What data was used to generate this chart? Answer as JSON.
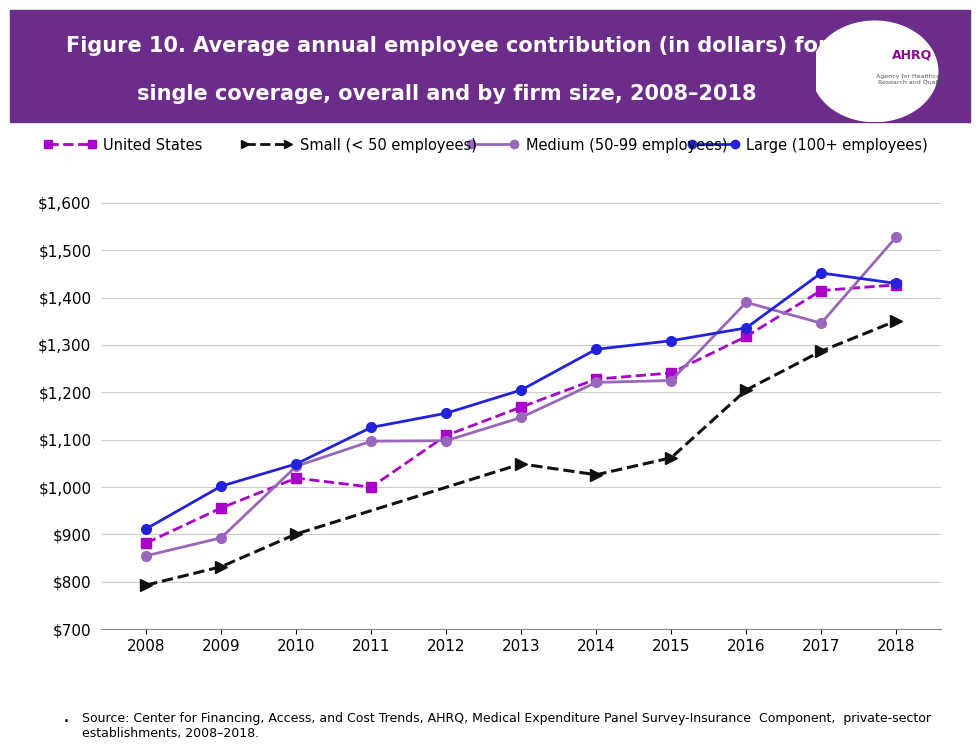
{
  "title_line1": "Figure 10. Average annual employee contribution (in dollars) for",
  "title_line2": "single coverage, overall and by firm size, 2008–2018",
  "header_bg_color": "#6B2C8A",
  "years": [
    2008,
    2009,
    2010,
    2011,
    2012,
    2013,
    2014,
    2015,
    2016,
    2017,
    2018
  ],
  "series": {
    "United States": {
      "values": [
        882,
        956,
        1019,
        1000,
        1109,
        1169,
        1228,
        1241,
        1318,
        1415,
        1427
      ],
      "color": "#AA00CC",
      "linestyle": "--",
      "marker": "s",
      "linewidth": 2.0,
      "markersize": 7
    },
    "Small (< 50 employees)": {
      "values": [
        793,
        832,
        901,
        null,
        null,
        1049,
        1026,
        1062,
        1205,
        1287,
        1351
      ],
      "color": "#111111",
      "linestyle": "--",
      "marker": ">",
      "linewidth": 2.2,
      "markersize": 8
    },
    "Medium (50-99 employees)": {
      "values": [
        855,
        893,
        1044,
        1097,
        1098,
        1147,
        1221,
        1225,
        1390,
        1346,
        1528
      ],
      "color": "#9966BB",
      "linestyle": "-",
      "marker": "o",
      "linewidth": 2.0,
      "markersize": 7
    },
    "Large (100+ employees)": {
      "values": [
        912,
        1002,
        1049,
        1126,
        1156,
        1205,
        1291,
        1309,
        1336,
        1452,
        1430
      ],
      "color": "#2222DD",
      "linestyle": "-",
      "marker": "o",
      "linewidth": 2.0,
      "markersize": 7
    }
  },
  "ylim": [
    700,
    1650
  ],
  "yticks": [
    700,
    800,
    900,
    1000,
    1100,
    1200,
    1300,
    1400,
    1500,
    1600
  ],
  "source_text": "Source: Center for Financing, Access, and Cost Trends, AHRQ, Medical Expenditure Panel Survey-Insurance  Component,  private-sector\nestablishments, 2008–2018."
}
